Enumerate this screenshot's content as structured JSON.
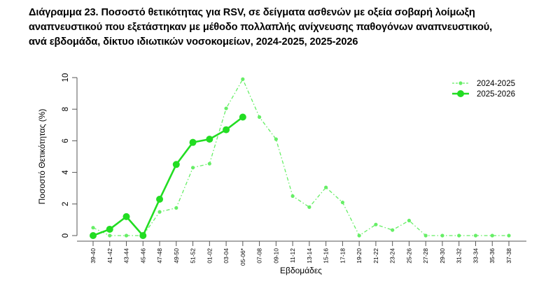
{
  "title_lines": [
    "Διάγραμμα 23.  Ποσοστό θετικότητας για RSV, σε δείγματα ασθενών με οξεία σοβαρή λοίμωξη",
    "αναπνευστικού που εξετάστηκαν με μέθοδο πολλαπλής ανίχνευσης παθογόνων αναπνευστικού,",
    "ανά εβδομάδα, δίκτυο ιδιωτικών νοσοκομείων, 2024-2025, 2025-2026"
  ],
  "chart_data": {
    "type": "line",
    "title": "Διάγραμμα 23.  Ποσοστό θετικότητας για RSV, σε δείγματα ασθενών με οξεία σοβαρή λοίμωξη αναπνευστικού που εξετάστηκαν με μέθοδο πολλαπλής ανίχνευσης παθογόνων αναπνευστικού, ανά εβδομάδα, δίκτυο ιδιωτικών νοσοκομείων, 2024-2025, 2025-2026",
    "xlabel": "Εβδομάδες",
    "ylabel": "Ποσοστό Θετικότητας (%)",
    "ylim": [
      0,
      10
    ],
    "yticks": [
      0,
      2,
      4,
      6,
      8,
      10
    ],
    "grid": false,
    "legend_position": "top-right",
    "categories": [
      "39-40",
      "41-42",
      "43-44",
      "45-46",
      "47-48",
      "49-50",
      "51-52",
      "01-02",
      "03-04",
      "05-06*",
      "07-08",
      "09-10",
      "11-12",
      "13-14",
      "15-16",
      "17-18",
      "19-20",
      "21-22",
      "23-24",
      "25-26",
      "27-28",
      "29-30",
      "31-32",
      "33-34",
      "35-36",
      "37-38"
    ],
    "series": [
      {
        "name": "2024-2025",
        "style": "dash-dot",
        "color": "#66ee66",
        "values": [
          0.5,
          0,
          0,
          0,
          1.5,
          1.75,
          4.3,
          4.55,
          8.05,
          9.9,
          7.5,
          6.1,
          2.5,
          1.8,
          3.05,
          2.1,
          0,
          0.7,
          0.35,
          0.95,
          0,
          0,
          0,
          0,
          0,
          0
        ]
      },
      {
        "name": "2025-2026",
        "style": "solid",
        "color": "#22dd22",
        "values": [
          0,
          0.4,
          1.2,
          0,
          2.3,
          4.5,
          5.9,
          6.1,
          6.7,
          7.5
        ]
      }
    ]
  }
}
